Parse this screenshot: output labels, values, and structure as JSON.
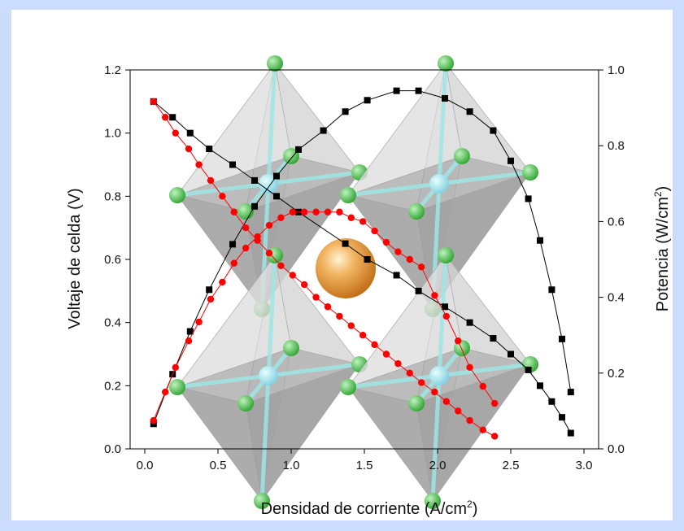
{
  "chart_data": {
    "type": "line",
    "xlabel": "Densidad de corriente (A/cm",
    "xlabel_sup": "2",
    "xlabel_close": ")",
    "ylabel": "Voltaje de celda (V)",
    "y2label": "Potencia (W/cm",
    "y2label_sup": "2",
    "y2label_close": ")",
    "xlim": [
      -0.1,
      3.1
    ],
    "ylim": [
      0.0,
      1.2
    ],
    "y2lim": [
      0.0,
      1.0
    ],
    "x_ticks": [
      "0.0",
      "0.5",
      "1.0",
      "1.5",
      "2.0",
      "2.5",
      "3.0"
    ],
    "y_ticks": [
      "0.0",
      "0.2",
      "0.4",
      "0.6",
      "0.8",
      "1.0",
      "1.2"
    ],
    "y2_ticks": [
      "0.0",
      "0.2",
      "0.4",
      "0.6",
      "0.8",
      "1.0"
    ],
    "grid": false,
    "legend": "none",
    "background_image": "perovskite-crystal-structure",
    "colors": {
      "black_series": "#000000",
      "red_series": "#ff0000",
      "sphere": "#e89a3c",
      "atom": "#55c855",
      "bond": "#9ee6e6"
    },
    "series": [
      {
        "marker": "square",
        "color": "#000000",
        "axis": "left",
        "x": [
          0.06,
          0.19,
          0.31,
          0.44,
          0.6,
          0.75,
          0.9,
          1.05,
          1.37,
          1.52,
          1.72,
          1.87,
          2.05,
          2.22,
          2.38,
          2.5,
          2.62,
          2.7,
          2.78,
          2.85,
          2.91
        ],
        "y": [
          1.1,
          1.05,
          1.0,
          0.95,
          0.9,
          0.85,
          0.8,
          0.75,
          0.65,
          0.6,
          0.55,
          0.5,
          0.45,
          0.4,
          0.35,
          0.3,
          0.25,
          0.2,
          0.15,
          0.1,
          0.05
        ]
      },
      {
        "marker": "square",
        "color": "#000000",
        "axis": "right",
        "x": [
          0.06,
          0.19,
          0.31,
          0.44,
          0.6,
          0.75,
          0.9,
          1.05,
          1.22,
          1.37,
          1.52,
          1.72,
          1.87,
          2.05,
          2.22,
          2.38,
          2.5,
          2.62,
          2.7,
          2.78,
          2.85,
          2.91
        ],
        "y": [
          0.066,
          0.197,
          0.31,
          0.42,
          0.54,
          0.64,
          0.72,
          0.79,
          0.84,
          0.89,
          0.92,
          0.945,
          0.945,
          0.925,
          0.89,
          0.84,
          0.76,
          0.66,
          0.55,
          0.42,
          0.29,
          0.15
        ]
      },
      {
        "marker": "circle",
        "color": "#ff0000",
        "axis": "left",
        "x": [
          0.06,
          0.14,
          0.21,
          0.3,
          0.37,
          0.45,
          0.53,
          0.61,
          0.69,
          0.77,
          0.85,
          0.93,
          1.01,
          1.09,
          1.17,
          1.25,
          1.33,
          1.41,
          1.49,
          1.57,
          1.65,
          1.73,
          1.81,
          1.89,
          1.98,
          2.06,
          2.14,
          2.22,
          2.31,
          2.39
        ],
        "y": [
          1.1,
          1.05,
          1.0,
          0.95,
          0.9,
          0.85,
          0.8,
          0.75,
          0.7,
          0.66,
          0.62,
          0.58,
          0.55,
          0.52,
          0.48,
          0.45,
          0.42,
          0.39,
          0.36,
          0.33,
          0.3,
          0.27,
          0.24,
          0.21,
          0.18,
          0.15,
          0.12,
          0.09,
          0.06,
          0.04
        ]
      },
      {
        "marker": "circle",
        "color": "#ff0000",
        "axis": "right",
        "x": [
          0.06,
          0.14,
          0.21,
          0.3,
          0.37,
          0.45,
          0.53,
          0.61,
          0.69,
          0.77,
          0.85,
          0.93,
          1.01,
          1.09,
          1.17,
          1.25,
          1.33,
          1.41,
          1.49,
          1.57,
          1.65,
          1.73,
          1.81,
          1.89,
          1.98,
          2.06,
          2.14,
          2.22,
          2.31,
          2.39
        ],
        "y": [
          0.075,
          0.15,
          0.215,
          0.285,
          0.335,
          0.395,
          0.44,
          0.49,
          0.53,
          0.56,
          0.59,
          0.61,
          0.625,
          0.625,
          0.625,
          0.625,
          0.625,
          0.61,
          0.6,
          0.575,
          0.545,
          0.52,
          0.5,
          0.48,
          0.405,
          0.35,
          0.285,
          0.215,
          0.165,
          0.12
        ]
      }
    ]
  }
}
